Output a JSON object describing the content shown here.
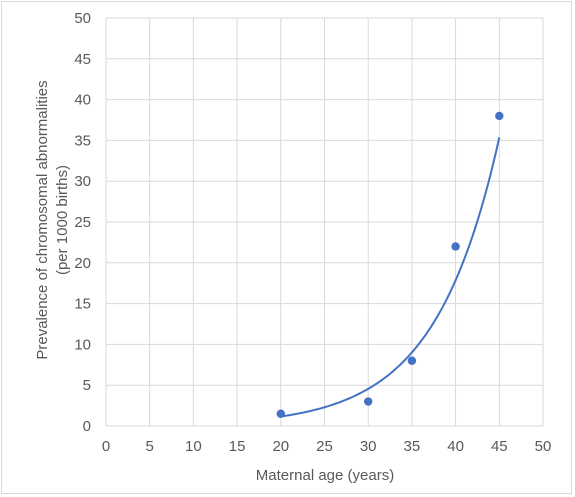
{
  "chart_data": {
    "type": "scatter",
    "title": "",
    "xlabel": "Maternal age (years)",
    "ylabel_lines": [
      "Prevalence of chromosomal abnormalities",
      "(per 1000 births)"
    ],
    "xlim": [
      0,
      50
    ],
    "ylim": [
      0,
      50
    ],
    "xticks": [
      0,
      5,
      10,
      15,
      20,
      25,
      30,
      35,
      40,
      45,
      50
    ],
    "yticks": [
      0,
      5,
      10,
      15,
      20,
      25,
      30,
      35,
      40,
      45,
      50
    ],
    "grid": true,
    "legend": "none",
    "series": [
      {
        "x": [
          20,
          30,
          35,
          40,
          45
        ],
        "y": [
          1.5,
          3,
          8,
          22,
          38
        ],
        "color": "#4472c4",
        "trendline": {
          "type": "exponential",
          "from": 20,
          "to": 45,
          "color": "#4472c4"
        }
      }
    ]
  }
}
